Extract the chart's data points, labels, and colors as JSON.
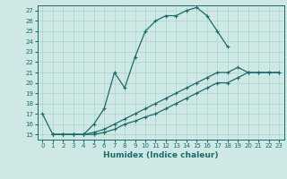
{
  "xlabel": "Humidex (Indice chaleur)",
  "xlim": [
    -0.5,
    23.5
  ],
  "ylim": [
    14.5,
    27.5
  ],
  "xticks": [
    0,
    1,
    2,
    3,
    4,
    5,
    6,
    7,
    8,
    9,
    10,
    11,
    12,
    13,
    14,
    15,
    16,
    17,
    18,
    19,
    20,
    21,
    22,
    23
  ],
  "yticks": [
    15,
    16,
    17,
    18,
    19,
    20,
    21,
    22,
    23,
    24,
    25,
    26,
    27
  ],
  "bg_color": "#cde8e5",
  "grid_color": "#aed0cc",
  "line_color": "#1a6b6b",
  "lines": [
    {
      "x": [
        0,
        1,
        2,
        3,
        4,
        5,
        6,
        7,
        8,
        9,
        10,
        11,
        12,
        13,
        14,
        15,
        16,
        17,
        18
      ],
      "y": [
        17,
        15,
        15,
        15,
        15,
        16,
        17.5,
        21,
        19.5,
        22.5,
        25,
        26,
        26.5,
        26.5,
        27,
        27.3,
        26.5,
        25,
        23.5
      ]
    },
    {
      "x": [
        1,
        2,
        3,
        4,
        5,
        6,
        7,
        8,
        9,
        10,
        11,
        12,
        13,
        14,
        15,
        16,
        17,
        18,
        19,
        20,
        21,
        22,
        23
      ],
      "y": [
        15,
        15,
        15,
        15,
        15.2,
        15.5,
        16,
        16.5,
        17,
        17.5,
        18,
        18.5,
        19,
        19.5,
        20,
        20.5,
        21,
        21,
        21.5,
        21,
        21,
        21,
        21
      ]
    },
    {
      "x": [
        1,
        2,
        3,
        4,
        5,
        6,
        7,
        8,
        9,
        10,
        11,
        12,
        13,
        14,
        15,
        16,
        17,
        18,
        19,
        20,
        21,
        22,
        23
      ],
      "y": [
        15,
        15,
        15,
        15,
        15,
        15.2,
        15.5,
        16,
        16.3,
        16.7,
        17,
        17.5,
        18,
        18.5,
        19,
        19.5,
        20,
        20,
        20.5,
        21,
        21,
        21,
        21
      ]
    }
  ]
}
